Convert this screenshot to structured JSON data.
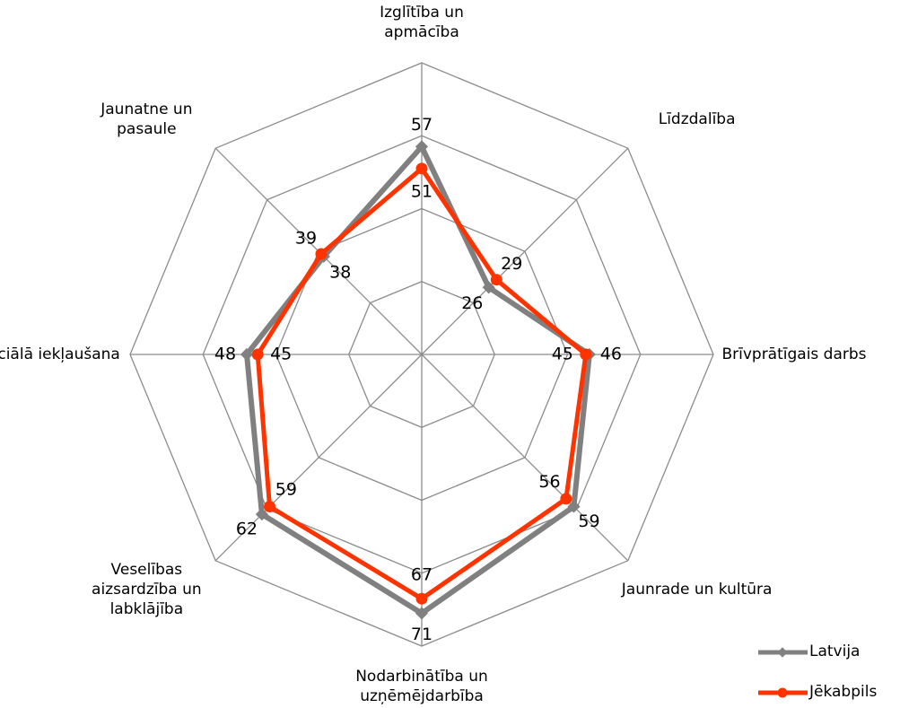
{
  "chart_data": {
    "type": "radar",
    "categories": [
      "Izglītība un apmācība",
      "Līdzdalība",
      "Brīvprātīgais darbs",
      "Jaunrade un kultūra",
      "Nodarbinātība un uzņēmējdarbība",
      "Veselības aizsardzība un labklājība",
      "Sociālā iekļaušana",
      "Jaunatne un pasaule"
    ],
    "series": [
      {
        "name": "Latvija",
        "color": "#808080",
        "values": [
          57,
          26,
          46,
          59,
          71,
          62,
          48,
          38
        ]
      },
      {
        "name": "Jēkabpils",
        "color": "#ff3300",
        "values": [
          51,
          29,
          45,
          56,
          67,
          59,
          45,
          39
        ]
      }
    ],
    "rlim": [
      0,
      80
    ],
    "rticks": [
      0,
      20,
      40,
      60,
      80
    ],
    "grid": true,
    "legend": "bottom-right"
  }
}
